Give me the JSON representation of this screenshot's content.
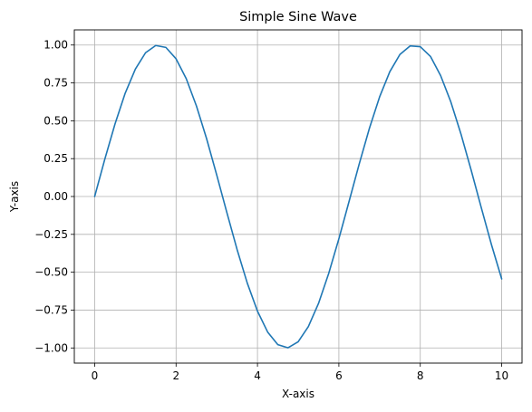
{
  "chart_data": {
    "type": "line",
    "title": "Simple Sine Wave",
    "xlabel": "X-axis",
    "ylabel": "Y-axis",
    "xlim": [
      -0.5,
      10.5
    ],
    "ylim": [
      -1.1,
      1.1
    ],
    "x_ticks": [
      0,
      2,
      4,
      6,
      8,
      10
    ],
    "y_ticks": [
      -1.0,
      -0.75,
      -0.5,
      -0.25,
      0.0,
      0.25,
      0.5,
      0.75,
      1.0
    ],
    "x_tick_labels": [
      "0",
      "2",
      "4",
      "6",
      "8",
      "10"
    ],
    "y_tick_labels": [
      "−1.00",
      "−0.75",
      "−0.50",
      "−0.25",
      "0.00",
      "0.25",
      "0.50",
      "0.75",
      "1.00"
    ],
    "grid": true,
    "series": [
      {
        "color": "#1f77b4",
        "x": [
          0,
          0.25,
          0.5,
          0.75,
          1,
          1.25,
          1.5,
          1.75,
          2,
          2.25,
          2.5,
          2.75,
          3,
          3.25,
          3.5,
          3.75,
          4,
          4.25,
          4.5,
          4.75,
          5,
          5.25,
          5.5,
          5.75,
          6,
          6.25,
          6.5,
          6.75,
          7,
          7.25,
          7.5,
          7.75,
          8,
          8.25,
          8.5,
          8.75,
          9,
          9.25,
          9.5,
          9.75,
          10
        ],
        "y": [
          0,
          0.247,
          0.479,
          0.682,
          0.841,
          0.949,
          0.997,
          0.984,
          0.909,
          0.778,
          0.598,
          0.382,
          0.141,
          -0.108,
          -0.351,
          -0.572,
          -0.757,
          -0.895,
          -0.978,
          -0.999,
          -0.959,
          -0.859,
          -0.706,
          -0.508,
          -0.279,
          -0.033,
          0.215,
          0.45,
          0.657,
          0.823,
          0.938,
          0.994,
          0.989,
          0.925,
          0.798,
          0.625,
          0.412,
          0.174,
          -0.075,
          -0.319,
          -0.544
        ]
      }
    ]
  }
}
